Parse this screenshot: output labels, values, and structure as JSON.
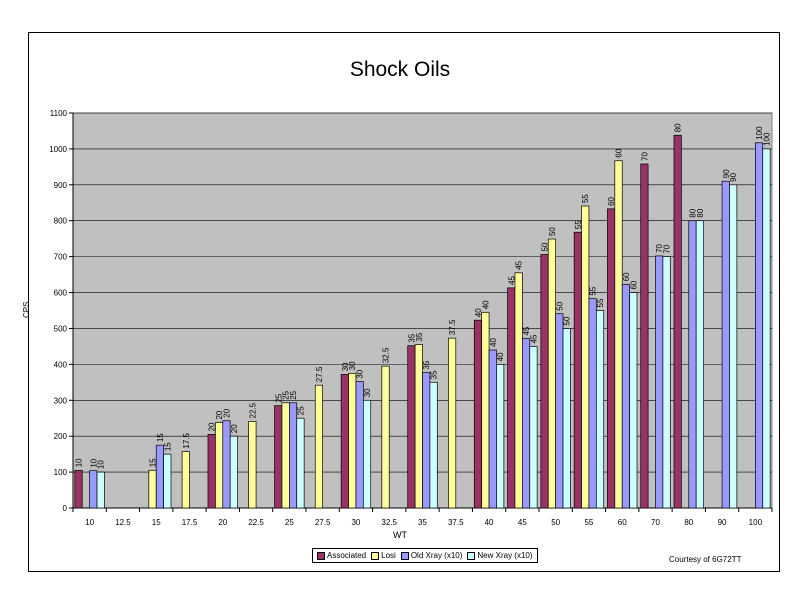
{
  "chart_data": {
    "type": "bar",
    "title": "Shock Oils",
    "xlabel": "WT",
    "ylabel": "CPS",
    "ylim": [
      0,
      1100
    ],
    "yticks": [
      0,
      100,
      200,
      300,
      400,
      500,
      600,
      700,
      800,
      900,
      1000,
      1100
    ],
    "grid": true,
    "legend_position": "bottom",
    "categories": [
      "10",
      "12.5",
      "15",
      "17.5",
      "20",
      "22.5",
      "25",
      "27.5",
      "30",
      "32.5",
      "35",
      "37.5",
      "40",
      "45",
      "50",
      "55",
      "60",
      "70",
      "80",
      "90",
      "100"
    ],
    "series": [
      {
        "name": "Associated",
        "color": "#993366",
        "values": [
          105,
          null,
          null,
          null,
          205,
          null,
          285,
          null,
          372,
          null,
          452,
          null,
          523,
          613,
          706,
          768,
          833,
          958,
          1038,
          null,
          null
        ],
        "labels": [
          "10",
          null,
          null,
          null,
          "20",
          null,
          "25",
          null,
          "30",
          null,
          "35",
          null,
          "40",
          "45",
          "50",
          "55",
          "60",
          "70",
          "80",
          null,
          null
        ]
      },
      {
        "name": "Losi",
        "color": "#ffff99",
        "values": [
          null,
          null,
          105,
          157,
          238,
          241,
          293,
          342,
          375,
          395,
          455,
          473,
          545,
          655,
          749,
          841,
          967,
          null,
          null,
          null,
          null
        ],
        "labels": [
          null,
          null,
          "15",
          "17.5",
          "20",
          "22.5",
          "25",
          "27.5",
          "30",
          "32.5",
          "35",
          "37.5",
          "40",
          "45",
          "50",
          "55",
          "60",
          null,
          null,
          null,
          null
        ]
      },
      {
        "name": "Old Xray (x10)",
        "color": "#9999ff",
        "values": [
          104,
          null,
          175,
          null,
          243,
          null,
          293,
          null,
          352,
          null,
          377,
          null,
          440,
          472,
          541,
          583,
          623,
          702,
          800,
          910,
          1017
        ],
        "labels": [
          "10",
          null,
          "15",
          null,
          "20",
          null,
          "25",
          null,
          "30",
          null,
          "35",
          null,
          "40",
          "45",
          "50",
          "55",
          "60",
          "70",
          "80",
          "90",
          "100"
        ]
      },
      {
        "name": "New Xray (x10)",
        "color": "#ccffff",
        "values": [
          100,
          null,
          150,
          null,
          200,
          null,
          250,
          null,
          300,
          null,
          350,
          null,
          400,
          450,
          500,
          550,
          600,
          700,
          800,
          900,
          1000
        ],
        "labels": [
          "10",
          null,
          "15",
          null,
          "20",
          null,
          "25",
          null,
          "30",
          null,
          "35",
          null,
          "40",
          "45",
          "50",
          "55",
          "60",
          "70",
          "80",
          "90",
          "100"
        ]
      }
    ],
    "plot_background": "#c0c0c0",
    "annotation": "Courtesy of 6G72TT"
  }
}
